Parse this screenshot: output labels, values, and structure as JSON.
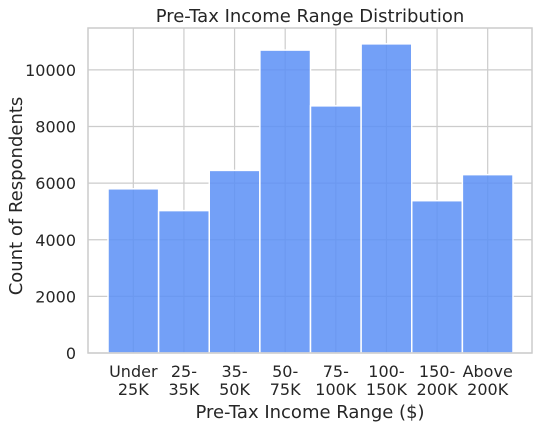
{
  "chart_data": {
    "type": "bar",
    "title": "Pre-Tax Income Range Distribution",
    "xlabel": "Pre-Tax Income Range ($)",
    "ylabel": "Count of Respondents",
    "categories": [
      [
        "Under",
        "25K"
      ],
      [
        "25-",
        "35K"
      ],
      [
        "35-",
        "50K"
      ],
      [
        "50-",
        "75K"
      ],
      [
        "75-",
        "100K"
      ],
      [
        "100-",
        "150K"
      ],
      [
        "150-",
        "200K"
      ],
      [
        "Above",
        "200K"
      ]
    ],
    "values": [
      5800,
      5030,
      6450,
      10700,
      8730,
      10920,
      5380,
      6300
    ],
    "ylim": [
      0,
      11480
    ],
    "yticks": [
      0,
      2000,
      4000,
      6000,
      8000,
      10000
    ],
    "grid": true,
    "bar_color": "#5b8ff6",
    "bar_opacity": 0.85
  }
}
